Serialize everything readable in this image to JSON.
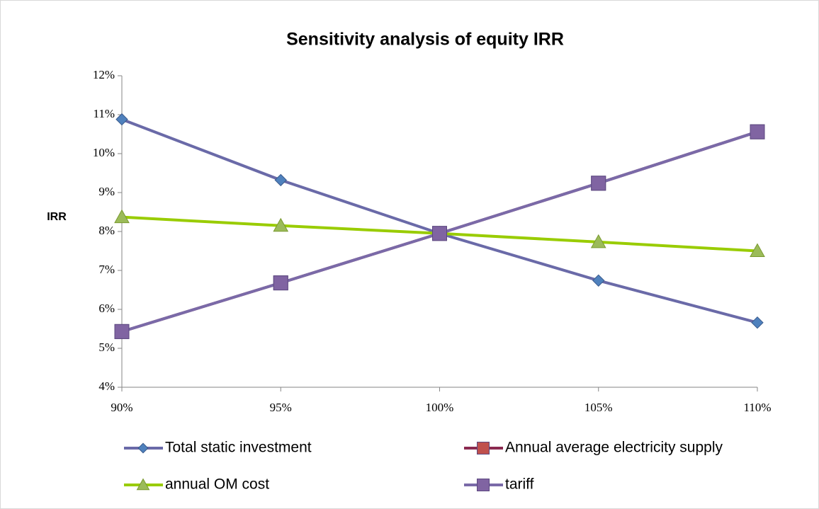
{
  "chart_data": {
    "type": "line",
    "title": "Sensitivity analysis of equity IRR",
    "y_label": "IRR",
    "categories": [
      "90%",
      "95%",
      "100%",
      "105%",
      "110%"
    ],
    "ylim": [
      4,
      12
    ],
    "yticks": [
      {
        "value": 4,
        "label": "4%"
      },
      {
        "value": 5,
        "label": "5%"
      },
      {
        "value": 6,
        "label": "6%"
      },
      {
        "value": 7,
        "label": "7%"
      },
      {
        "value": 8,
        "label": "8%"
      },
      {
        "value": 9,
        "label": "9%"
      },
      {
        "value": 10,
        "label": "10%"
      },
      {
        "value": 11,
        "label": "11%"
      },
      {
        "value": 12,
        "label": "12%"
      }
    ],
    "grid": false,
    "series": [
      {
        "name": "Total static investment",
        "color": "#4f81bd",
        "line_color": "#6a6aa8",
        "marker": "diamond",
        "values": [
          10.88,
          9.32,
          7.95,
          6.74,
          5.66
        ]
      },
      {
        "name": "Annual average electricity supply",
        "color": "#c0504d",
        "line_color": "#8b2a50",
        "marker": "square",
        "values": [
          5.43,
          6.68,
          7.95,
          9.24,
          10.56
        ]
      },
      {
        "name": "annual OM cost",
        "color": "#9bbb59",
        "line_color": "#99cc00",
        "marker": "triangle",
        "values": [
          8.37,
          8.15,
          7.95,
          7.73,
          7.5
        ]
      },
      {
        "name": "tariff",
        "color": "#8064a2",
        "line_color": "#7a6aa8",
        "marker": "square",
        "values": [
          5.43,
          6.68,
          7.95,
          9.24,
          10.56
        ]
      }
    ]
  }
}
